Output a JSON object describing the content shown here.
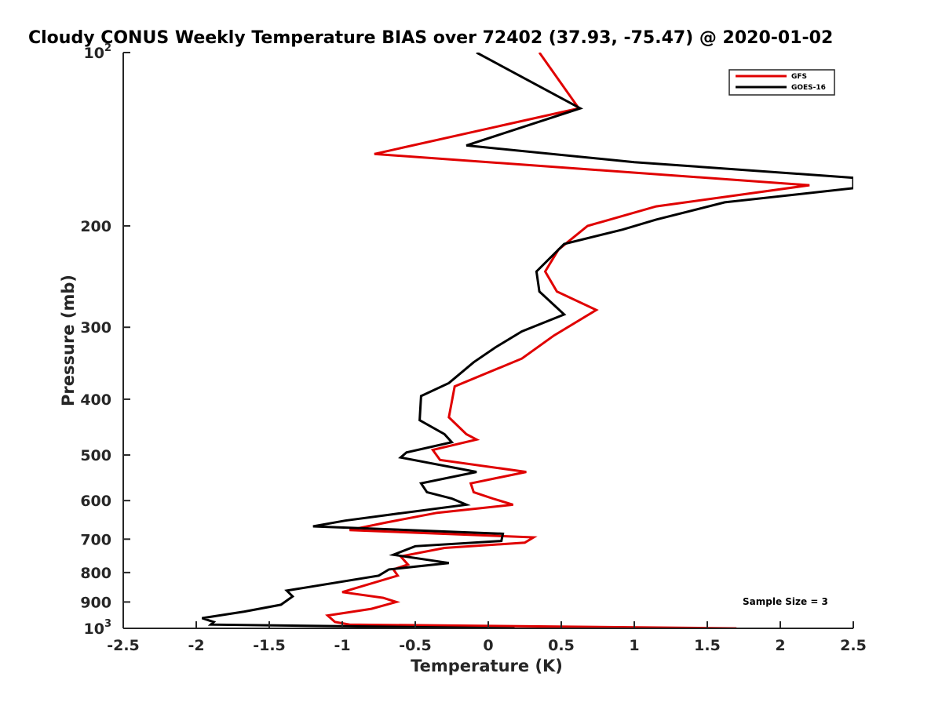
{
  "chart_data": {
    "type": "line",
    "title": "Cloudy CONUS Weekly Temperature BIAS over 72402 (37.93, -75.47) @ 2020-01-02",
    "xlabel": "Temperature (K)",
    "ylabel": "Pressure (mb)",
    "xlim": [
      -2.5,
      2.5
    ],
    "ylim": [
      100,
      1000
    ],
    "y_scale": "log",
    "y_reversed": true,
    "x_ticks": [
      "-2.5",
      "-2",
      "-1.5",
      "-1",
      "-0.5",
      "0",
      "0.5",
      "1",
      "1.5",
      "2",
      "2.5"
    ],
    "x_tick_values": [
      -2.5,
      -2,
      -1.5,
      -1,
      -0.5,
      0,
      0.5,
      1,
      1.5,
      2,
      2.5
    ],
    "y_ticks": [
      {
        "value": 100,
        "base": "10",
        "exp": "2"
      },
      {
        "value": 200,
        "label": "200"
      },
      {
        "value": 300,
        "label": "300"
      },
      {
        "value": 400,
        "label": "400"
      },
      {
        "value": 500,
        "label": "500"
      },
      {
        "value": 600,
        "label": "600"
      },
      {
        "value": 700,
        "label": "700"
      },
      {
        "value": 800,
        "label": "800"
      },
      {
        "value": 900,
        "label": "900"
      },
      {
        "value": 1000,
        "base": "10",
        "exp": "3"
      }
    ],
    "legend_position": "top-right",
    "grid": false,
    "annotation": "Sample Size = 3",
    "series": [
      {
        "name": "GFS",
        "color": "#e00000",
        "points": [
          [
            0.35,
            100
          ],
          [
            0.62,
            125
          ],
          [
            -0.78,
            150
          ],
          [
            2.2,
            170
          ],
          [
            1.15,
            185
          ],
          [
            0.68,
            200
          ],
          [
            0.48,
            220
          ],
          [
            0.39,
            240
          ],
          [
            0.47,
            260
          ],
          [
            0.74,
            280
          ],
          [
            0.45,
            310
          ],
          [
            0.23,
            340
          ],
          [
            -0.23,
            380
          ],
          [
            -0.27,
            430
          ],
          [
            -0.15,
            460
          ],
          [
            -0.08,
            470
          ],
          [
            -0.38,
            490
          ],
          [
            -0.33,
            510
          ],
          [
            0.26,
            535
          ],
          [
            -0.12,
            560
          ],
          [
            -0.1,
            580
          ],
          [
            0.03,
            595
          ],
          [
            0.17,
            610
          ],
          [
            -0.35,
            630
          ],
          [
            -0.7,
            655
          ],
          [
            -0.95,
            675
          ],
          [
            0.31,
            695
          ],
          [
            0.25,
            710
          ],
          [
            -0.3,
            725
          ],
          [
            -0.6,
            750
          ],
          [
            -0.55,
            775
          ],
          [
            -0.65,
            790
          ],
          [
            -0.62,
            810
          ],
          [
            -1.0,
            865
          ],
          [
            -0.72,
            885
          ],
          [
            -0.63,
            900
          ],
          [
            -0.8,
            925
          ],
          [
            -1.1,
            950
          ],
          [
            -1.05,
            975
          ],
          [
            -0.95,
            985
          ],
          [
            1.7,
            1000
          ]
        ]
      },
      {
        "name": "GOES-16",
        "color": "#000000",
        "points": [
          [
            -0.08,
            100
          ],
          [
            0.63,
            125
          ],
          [
            -0.15,
            145
          ],
          [
            1.0,
            155
          ],
          [
            2.5,
            165
          ],
          [
            2.5,
            172
          ],
          [
            1.62,
            182
          ],
          [
            1.15,
            195
          ],
          [
            0.92,
            203
          ],
          [
            0.52,
            215
          ],
          [
            0.33,
            240
          ],
          [
            0.35,
            260
          ],
          [
            0.52,
            285
          ],
          [
            0.23,
            305
          ],
          [
            0.05,
            325
          ],
          [
            -0.1,
            345
          ],
          [
            -0.27,
            375
          ],
          [
            -0.46,
            395
          ],
          [
            -0.47,
            435
          ],
          [
            -0.3,
            460
          ],
          [
            -0.25,
            475
          ],
          [
            -0.56,
            495
          ],
          [
            -0.6,
            505
          ],
          [
            -0.08,
            535
          ],
          [
            -0.46,
            560
          ],
          [
            -0.42,
            580
          ],
          [
            -0.25,
            595
          ],
          [
            -0.15,
            610
          ],
          [
            -0.68,
            635
          ],
          [
            -0.98,
            650
          ],
          [
            -1.2,
            665
          ],
          [
            0.1,
            685
          ],
          [
            0.09,
            705
          ],
          [
            -0.5,
            720
          ],
          [
            -0.65,
            745
          ],
          [
            -0.27,
            770
          ],
          [
            -0.68,
            790
          ],
          [
            -0.75,
            810
          ],
          [
            -1.38,
            860
          ],
          [
            -1.34,
            880
          ],
          [
            -1.42,
            910
          ],
          [
            -1.67,
            935
          ],
          [
            -1.96,
            960
          ],
          [
            -1.88,
            975
          ],
          [
            -1.9,
            985
          ],
          [
            0.18,
            1000
          ]
        ]
      }
    ]
  }
}
